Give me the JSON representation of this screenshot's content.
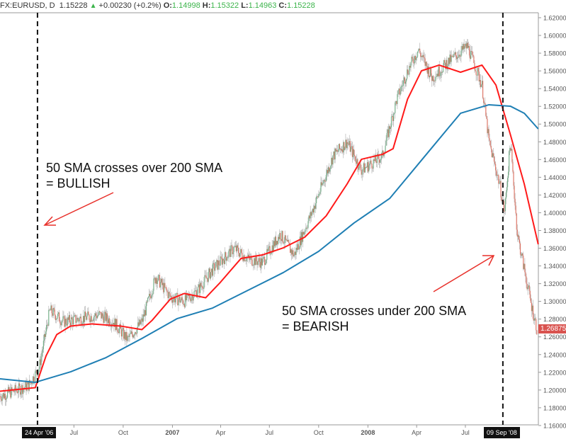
{
  "header": {
    "symbol": "FX:EURUSD, D",
    "last": "1.15228",
    "change": "+0.00230 (+0.2%)",
    "o_label": "O:",
    "o": "1.14998",
    "h_label": "H:",
    "h": "1.15322",
    "l_label": "L:",
    "l": "1.14963",
    "c_label": "C:",
    "c": "1.15228"
  },
  "annotations": {
    "bull_line1": "50 SMA crosses over 200 SMA",
    "bull_line2": "= BULLISH",
    "bear_line1": "50 SMA crosses under 200 SMA",
    "bear_line2": "= BEARISH"
  },
  "colors": {
    "up": "#5fa878",
    "down": "#e0604e",
    "sma50": "#ff1a1a",
    "sma200": "#1f7fb4",
    "last": "#d9534f"
  },
  "chart_data": {
    "type": "candlestick",
    "title": "FX:EURUSD, D",
    "x_unit": "days since 2006-02-13",
    "ylim": [
      1.16,
      1.62
    ],
    "y_ticks": [
      "1.16000",
      "1.18000",
      "1.20000",
      "1.22000",
      "1.24000",
      "1.26000",
      "1.28000",
      "1.30000",
      "1.32000",
      "1.34000",
      "1.36000",
      "1.38000",
      "1.40000",
      "1.42000",
      "1.44000",
      "1.46000",
      "1.48000",
      "1.50000",
      "1.52000",
      "1.54000",
      "1.56000",
      "1.58000",
      "1.60000",
      "1.62000"
    ],
    "x_ticks": [
      {
        "label": "Jul",
        "day": 138
      },
      {
        "label": "Oct",
        "day": 230
      },
      {
        "label": "2007",
        "day": 322
      },
      {
        "label": "Apr",
        "day": 412
      },
      {
        "label": "Jul",
        "day": 503
      },
      {
        "label": "Oct",
        "day": 595
      },
      {
        "label": "2008",
        "day": 687
      },
      {
        "label": "Apr",
        "day": 778
      },
      {
        "label": "Jul",
        "day": 869
      }
    ],
    "markers": [
      {
        "label": "24 Apr '06",
        "day": 70
      },
      {
        "label": "09 Sep '08",
        "day": 939
      }
    ],
    "last_price": "1.26875",
    "price_path": [
      [
        0,
        1.193
      ],
      [
        53,
        1.205
      ],
      [
        73,
        1.225
      ],
      [
        93,
        1.29
      ],
      [
        119,
        1.277
      ],
      [
        146,
        1.28
      ],
      [
        185,
        1.285
      ],
      [
        212,
        1.277
      ],
      [
        238,
        1.257
      ],
      [
        265,
        1.277
      ],
      [
        291,
        1.328
      ],
      [
        318,
        1.305
      ],
      [
        344,
        1.3
      ],
      [
        370,
        1.313
      ],
      [
        397,
        1.336
      ],
      [
        437,
        1.36
      ],
      [
        463,
        1.348
      ],
      [
        490,
        1.344
      ],
      [
        523,
        1.376
      ],
      [
        549,
        1.352
      ],
      [
        582,
        1.4
      ],
      [
        622,
        1.464
      ],
      [
        648,
        1.48
      ],
      [
        675,
        1.448
      ],
      [
        714,
        1.464
      ],
      [
        741,
        1.528
      ],
      [
        761,
        1.56
      ],
      [
        781,
        1.584
      ],
      [
        807,
        1.552
      ],
      [
        833,
        1.568
      ],
      [
        873,
        1.588
      ],
      [
        900,
        1.544
      ],
      [
        913,
        1.48
      ],
      [
        933,
        1.432
      ],
      [
        942,
        1.4
      ],
      [
        953,
        1.48
      ],
      [
        966,
        1.376
      ],
      [
        979,
        1.336
      ],
      [
        992,
        1.296
      ],
      [
        1003,
        1.268
      ]
    ],
    "series": [
      {
        "name": "SMA 50",
        "color": "#ff1a1a",
        "points": [
          [
            0,
            1.1987
          ],
          [
            66,
            1.2027
          ],
          [
            86,
            1.2386
          ],
          [
            106,
            1.2626
          ],
          [
            132,
            1.2722
          ],
          [
            172,
            1.2746
          ],
          [
            225,
            1.2722
          ],
          [
            265,
            1.2682
          ],
          [
            284,
            1.2786
          ],
          [
            318,
            1.3025
          ],
          [
            344,
            1.3089
          ],
          [
            384,
            1.3041
          ],
          [
            410,
            1.3205
          ],
          [
            450,
            1.3484
          ],
          [
            490,
            1.3524
          ],
          [
            529,
            1.3604
          ],
          [
            569,
            1.3724
          ],
          [
            609,
            1.3964
          ],
          [
            648,
            1.4323
          ],
          [
            675,
            1.4603
          ],
          [
            714,
            1.4659
          ],
          [
            734,
            1.4722
          ],
          [
            761,
            1.5281
          ],
          [
            787,
            1.5601
          ],
          [
            820,
            1.5665
          ],
          [
            860,
            1.5585
          ],
          [
            900,
            1.5665
          ],
          [
            926,
            1.5441
          ],
          [
            953,
            1.4882
          ],
          [
            979,
            1.4323
          ],
          [
            1005,
            1.3644
          ]
        ]
      },
      {
        "name": "SMA 200",
        "color": "#1f7fb4",
        "points": [
          [
            0,
            1.2127
          ],
          [
            66,
            1.2087
          ],
          [
            132,
            1.2206
          ],
          [
            198,
            1.2366
          ],
          [
            265,
            1.2582
          ],
          [
            331,
            1.2806
          ],
          [
            397,
            1.2925
          ],
          [
            463,
            1.3125
          ],
          [
            529,
            1.3325
          ],
          [
            595,
            1.3564
          ],
          [
            661,
            1.3884
          ],
          [
            728,
            1.4163
          ],
          [
            794,
            1.4643
          ],
          [
            860,
            1.5122
          ],
          [
            913,
            1.5218
          ],
          [
            953,
            1.5202
          ],
          [
            979,
            1.5122
          ],
          [
            1005,
            1.4946
          ]
        ]
      }
    ]
  }
}
